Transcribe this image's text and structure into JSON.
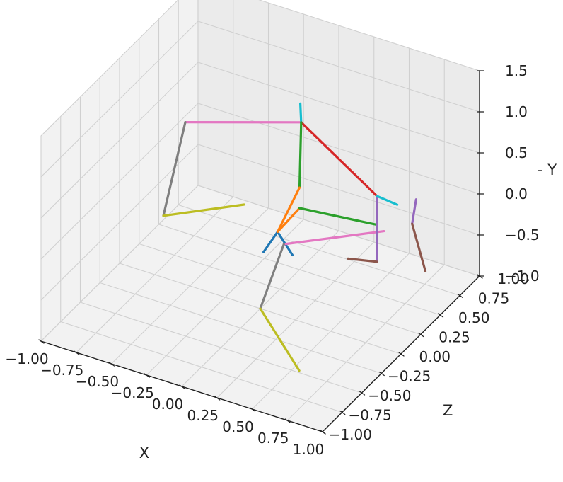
{
  "chart_data": {
    "type": "line",
    "title": "",
    "xlabel": "X",
    "ylabel": "- Y",
    "zlabel": "Z",
    "grid": true,
    "xlim": [
      -1.0,
      1.0
    ],
    "ylim": [
      -1.0,
      1.5
    ],
    "zlim": [
      -1.0,
      1.0
    ],
    "x_ticks": [
      "−1.00",
      "−0.75",
      "−0.50",
      "−0.25",
      "0.00",
      "0.25",
      "0.50",
      "0.75",
      "1.00"
    ],
    "y_ticks": [
      "−1.0",
      "−0.5",
      "0.0",
      "0.5",
      "1.0",
      "1.5"
    ],
    "z_ticks": [
      "−1.00",
      "−0.75",
      "−0.50",
      "−0.25",
      "0.00",
      "0.25",
      "0.50",
      "0.75",
      "1.00"
    ],
    "series": [
      {
        "color": "#e377c2",
        "points": [
          [
            -0.7,
            0.6,
            0.3
          ],
          [
            -0.1,
            0.55,
            0.7
          ]
        ]
      },
      {
        "color": "#7f7f7f",
        "points": [
          [
            -0.7,
            0.6,
            0.3
          ],
          [
            -0.8,
            -0.5,
            0.2
          ]
        ]
      },
      {
        "color": "#bcbd22",
        "points": [
          [
            -0.8,
            -0.5,
            0.2
          ],
          [
            -0.45,
            -0.55,
            0.6
          ]
        ]
      },
      {
        "color": "#17becf",
        "points": [
          [
            -0.1,
            0.55,
            0.7
          ],
          [
            -0.05,
            0.9,
            0.6
          ]
        ]
      },
      {
        "color": "#d62728",
        "points": [
          [
            -0.1,
            0.55,
            0.7
          ],
          [
            0.55,
            0.2,
            0.5
          ]
        ]
      },
      {
        "color": "#2ca02c",
        "points": [
          [
            -0.1,
            0.55,
            0.7
          ],
          [
            0.0,
            0.0,
            0.5
          ]
        ]
      },
      {
        "color": "#ff7f0e",
        "points": [
          [
            0.0,
            0.0,
            0.5
          ],
          [
            -0.1,
            -0.5,
            0.4
          ]
        ]
      },
      {
        "color": "#1f77b4",
        "points": [
          [
            -0.1,
            -0.5,
            0.4
          ],
          [
            -0.2,
            -0.8,
            0.4
          ]
        ]
      },
      {
        "color": "#1f77b4",
        "points": [
          [
            -0.1,
            -0.5,
            0.4
          ],
          [
            -0.05,
            -0.85,
            0.5
          ]
        ]
      },
      {
        "color": "#ff7f0e",
        "points": [
          [
            -0.1,
            -0.5,
            0.4
          ],
          [
            0.0,
            -0.25,
            0.5
          ]
        ]
      },
      {
        "color": "#2ca02c",
        "points": [
          [
            0.0,
            -0.25,
            0.5
          ],
          [
            0.55,
            -0.15,
            0.5
          ]
        ]
      },
      {
        "color": "#e377c2",
        "points": [
          [
            0.0,
            -0.5,
            0.3
          ],
          [
            0.6,
            -0.2,
            0.5
          ]
        ]
      },
      {
        "color": "#7f7f7f",
        "points": [
          [
            0.0,
            -0.5,
            0.3
          ],
          [
            0.0,
            -1.0,
            0.0
          ]
        ]
      },
      {
        "color": "#bcbd22",
        "points": [
          [
            0.0,
            -1.0,
            0.0
          ],
          [
            0.5,
            -1.1,
            -0.4
          ]
        ]
      },
      {
        "color": "#9467bd",
        "points": [
          [
            0.55,
            0.2,
            0.5
          ],
          [
            0.55,
            -0.6,
            0.5
          ]
        ]
      },
      {
        "color": "#8c564b",
        "points": [
          [
            0.55,
            -0.6,
            0.5
          ],
          [
            0.4,
            -0.55,
            0.4
          ]
        ]
      },
      {
        "color": "#17becf",
        "points": [
          [
            0.55,
            0.2,
            0.5
          ],
          [
            0.75,
            0.3,
            0.4
          ]
        ]
      },
      {
        "color": "#9467bd",
        "points": [
          [
            0.8,
            0.25,
            0.55
          ],
          [
            0.8,
            0.0,
            0.5
          ]
        ]
      },
      {
        "color": "#8c564b",
        "points": [
          [
            0.8,
            0.0,
            0.5
          ],
          [
            0.95,
            -0.4,
            0.4
          ]
        ]
      }
    ]
  }
}
